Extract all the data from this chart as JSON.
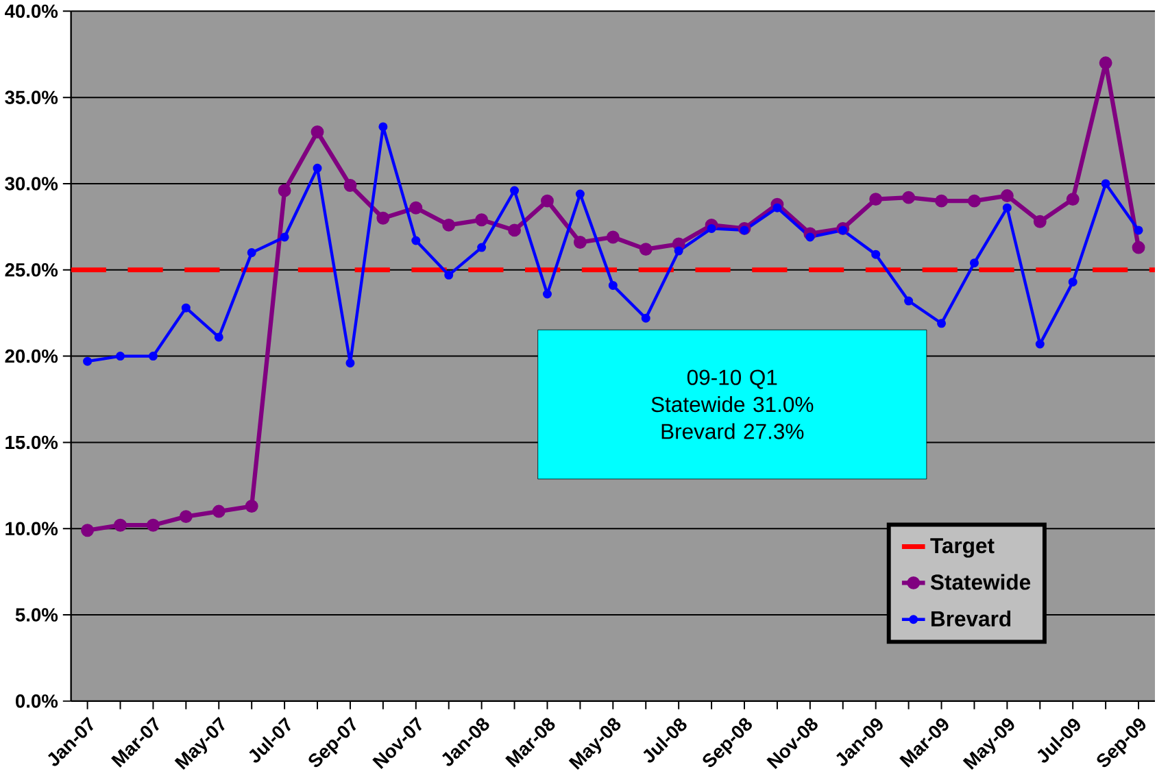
{
  "chart_data": {
    "type": "line",
    "categories": [
      "Jan-07",
      null,
      "Mar-07",
      null,
      "May-07",
      null,
      "Jul-07",
      null,
      "Sep-07",
      null,
      "Nov-07",
      null,
      "Jan-08",
      null,
      "Mar-08",
      null,
      "May-08",
      null,
      "Jul-08",
      null,
      "Sep-08",
      null,
      "Nov-08",
      null,
      "Jan-09",
      null,
      "Mar-09",
      null,
      "May-09",
      null,
      "Jul-09",
      null,
      "Sep-09"
    ],
    "series": [
      {
        "name": "Statewide",
        "color": "#800080",
        "values": [
          9.9,
          10.2,
          10.2,
          10.7,
          11.0,
          11.3,
          29.6,
          33.0,
          29.9,
          28.0,
          28.6,
          27.6,
          27.9,
          27.3,
          29.0,
          26.6,
          26.9,
          26.2,
          26.5,
          27.6,
          27.4,
          28.8,
          27.1,
          27.4,
          29.1,
          29.2,
          29.0,
          29.0,
          29.3,
          27.8,
          29.1,
          37.0,
          26.3
        ]
      },
      {
        "name": "Brevard",
        "color": "#0000ff",
        "values": [
          19.7,
          20.0,
          20.0,
          22.8,
          21.1,
          26.0,
          26.9,
          30.9,
          19.6,
          33.3,
          26.7,
          24.7,
          26.3,
          29.6,
          23.6,
          29.4,
          24.1,
          22.2,
          26.1,
          27.4,
          27.3,
          28.6,
          26.9,
          27.3,
          25.9,
          23.2,
          21.9,
          25.4,
          28.6,
          20.7,
          24.3,
          30.0,
          27.3
        ]
      }
    ],
    "ylim": [
      0,
      40
    ],
    "yticks": [
      {
        "value": 0,
        "label": "0.0%"
      },
      {
        "value": 5,
        "label": "5.0%"
      },
      {
        "value": 10,
        "label": "10.0%"
      },
      {
        "value": 15,
        "label": "15.0%"
      },
      {
        "value": 20,
        "label": "20.0%"
      },
      {
        "value": 25,
        "label": "25.0%"
      },
      {
        "value": 30,
        "label": "30.0%"
      },
      {
        "value": 35,
        "label": "35.0%"
      },
      {
        "value": 40,
        "label": "40.0%"
      }
    ],
    "ref_lines": [
      {
        "axis": "y",
        "value": 25,
        "label": "Target",
        "color": "#ff0000",
        "line_style": "dashed"
      }
    ],
    "annotations": [
      "09-10 Q1\nStatewide 31.0%\nBrevard 27.3%"
    ],
    "grid": "y",
    "legend": "bottom right",
    "marker": "circle",
    "line_style": "solid"
  }
}
